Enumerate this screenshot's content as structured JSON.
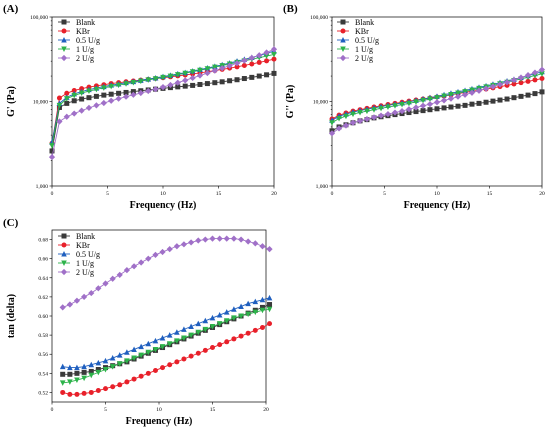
{
  "chart_data": [
    {
      "panel": "(A)",
      "type": "scatter",
      "xlabel": "Frequency (Hz)",
      "ylabel": "G' (Pa)",
      "scale_y": "log",
      "xlim": [
        0,
        20
      ],
      "ylim": [
        1000,
        100000
      ],
      "xticks": [
        0,
        5,
        10,
        15,
        20
      ],
      "yticks": [
        1000,
        10000,
        100000
      ],
      "ytick_labels": [
        "1,000",
        "10,000",
        "100,000"
      ],
      "legend_position": "top-left",
      "x": [
        0,
        0.67,
        1.33,
        2,
        2.67,
        3.33,
        4,
        4.67,
        5.33,
        6,
        6.67,
        7.33,
        8,
        8.67,
        9.33,
        10,
        10.67,
        11.33,
        12,
        12.67,
        13.33,
        14,
        14.67,
        15.33,
        16,
        16.67,
        17.33,
        18,
        18.67,
        19.33,
        20
      ],
      "series": [
        {
          "name": "Blank",
          "color": "#3a3a3a",
          "marker": "square",
          "values": [
            2600,
            8500,
            9500,
            10200,
            10700,
            11100,
            11500,
            11900,
            12200,
            12500,
            12800,
            13100,
            13400,
            13700,
            14000,
            14300,
            14600,
            14900,
            15200,
            15500,
            15900,
            16300,
            16700,
            17100,
            17600,
            18100,
            18700,
            19300,
            20000,
            20700,
            21500
          ]
        },
        {
          "name": "KBr",
          "color": "#e8202a",
          "marker": "circle",
          "values": [
            3200,
            11000,
            12500,
            13500,
            14200,
            14800,
            15300,
            15800,
            16300,
            16700,
            17100,
            17500,
            17900,
            18300,
            18700,
            19100,
            19600,
            20100,
            20600,
            21200,
            21800,
            22500,
            23200,
            24000,
            24800,
            25700,
            26700,
            27800,
            29000,
            30300,
            31700
          ]
        },
        {
          "name": "0.5 U/g",
          "color": "#1f5fbf",
          "marker": "triangle-up",
          "values": [
            3300,
            9500,
            11200,
            12300,
            13100,
            13800,
            14400,
            15000,
            15600,
            16100,
            16700,
            17200,
            17800,
            18400,
            19000,
            19700,
            20400,
            21200,
            22000,
            22900,
            23900,
            24900,
            26000,
            27200,
            28500,
            30000,
            31500,
            33200,
            35000,
            37000,
            39500
          ]
        },
        {
          "name": "1 U/g",
          "color": "#2db34a",
          "marker": "triangle-down",
          "values": [
            3000,
            9000,
            10800,
            11800,
            12600,
            13300,
            13900,
            14500,
            15100,
            15600,
            16200,
            16800,
            17400,
            18000,
            18600,
            19300,
            20000,
            20800,
            21600,
            22500,
            23400,
            24400,
            25500,
            26600,
            27800,
            29000,
            30300,
            31600,
            33000,
            34500,
            36000
          ]
        },
        {
          "name": "2 U/g",
          "color": "#a070c8",
          "marker": "diamond",
          "values": [
            2200,
            5800,
            6600,
            7200,
            7800,
            8400,
            9000,
            9600,
            10200,
            10800,
            11400,
            12000,
            12600,
            13300,
            14000,
            14800,
            15700,
            16700,
            17800,
            19000,
            20300,
            21700,
            23200,
            24800,
            26500,
            28400,
            30500,
            32800,
            35300,
            38000,
            41500
          ]
        }
      ]
    },
    {
      "panel": "(B)",
      "type": "scatter",
      "xlabel": "Frequency (Hz)",
      "ylabel": "G'' (Pa)",
      "scale_y": "log",
      "xlim": [
        0,
        20
      ],
      "ylim": [
        1000,
        100000
      ],
      "xticks": [
        0,
        5,
        10,
        15,
        20
      ],
      "yticks": [
        1000,
        10000,
        100000
      ],
      "ytick_labels": [
        "1,000",
        "10,000",
        "100,000"
      ],
      "legend_position": "top-left",
      "x": [
        0,
        0.67,
        1.33,
        2,
        2.67,
        3.33,
        4,
        4.67,
        5.33,
        6,
        6.67,
        7.33,
        8,
        8.67,
        9.33,
        10,
        10.67,
        11.33,
        12,
        12.67,
        13.33,
        14,
        14.67,
        15.33,
        16,
        16.67,
        17.33,
        18,
        18.67,
        19.33,
        20
      ],
      "series": [
        {
          "name": "Blank",
          "color": "#3a3a3a",
          "marker": "square",
          "values": [
            4500,
            5000,
            5300,
            5600,
            5900,
            6100,
            6400,
            6600,
            6800,
            7000,
            7200,
            7400,
            7600,
            7800,
            8000,
            8200,
            8400,
            8600,
            8800,
            9000,
            9300,
            9500,
            9800,
            10100,
            10400,
            10700,
            11100,
            11500,
            11900,
            12400,
            13000
          ]
        },
        {
          "name": "KBr",
          "color": "#e8202a",
          "marker": "circle",
          "values": [
            6200,
            6900,
            7300,
            7700,
            8000,
            8300,
            8600,
            8900,
            9200,
            9500,
            9800,
            10100,
            10400,
            10700,
            11000,
            11300,
            11600,
            12000,
            12400,
            12800,
            13200,
            13600,
            14000,
            14500,
            15000,
            15500,
            16100,
            16700,
            17300,
            18000,
            18700
          ]
        },
        {
          "name": "0.5 U/g",
          "color": "#1f5fbf",
          "marker": "triangle-up",
          "values": [
            6000,
            6700,
            7100,
            7500,
            7800,
            8100,
            8400,
            8700,
            9000,
            9300,
            9600,
            9900,
            10300,
            10700,
            11100,
            11500,
            12000,
            12500,
            13000,
            13500,
            14100,
            14700,
            15300,
            16000,
            16700,
            17500,
            18300,
            19200,
            20200,
            21300,
            22500
          ]
        },
        {
          "name": "1 U/g",
          "color": "#2db34a",
          "marker": "triangle-down",
          "values": [
            5600,
            6300,
            6700,
            7100,
            7400,
            7700,
            8000,
            8300,
            8600,
            8900,
            9200,
            9500,
            9900,
            10300,
            10700,
            11100,
            11600,
            12100,
            12600,
            13100,
            13700,
            14300,
            14900,
            15500,
            16200,
            16900,
            17700,
            18500,
            19400,
            20300,
            21300
          ]
        },
        {
          "name": "2 U/g",
          "color": "#a070c8",
          "marker": "diamond",
          "values": [
            4200,
            4800,
            5200,
            5600,
            5900,
            6200,
            6500,
            6800,
            7100,
            7400,
            7700,
            8100,
            8500,
            8900,
            9300,
            9800,
            10300,
            10800,
            11400,
            12000,
            12700,
            13400,
            14200,
            15000,
            15900,
            16900,
            18000,
            19200,
            20500,
            22000,
            23800
          ]
        }
      ]
    },
    {
      "panel": "(C)",
      "type": "scatter",
      "xlabel": "Frequency (Hz)",
      "ylabel": "tan (delta)",
      "xlim": [
        0,
        20
      ],
      "ylim": [
        0.51,
        0.69
      ],
      "xticks": [
        0,
        5,
        10,
        15,
        20
      ],
      "yticks": [
        0.52,
        0.54,
        0.56,
        0.58,
        0.6,
        0.62,
        0.64,
        0.66,
        0.68
      ],
      "ytick_labels": [
        "0.52",
        "0.54",
        "0.56",
        "0.58",
        "0.60",
        "0.62",
        "0.64",
        "0.66",
        "0.68"
      ],
      "legend_position": "top-left",
      "x": [
        1,
        1.67,
        2.33,
        3,
        3.67,
        4.33,
        5,
        5.67,
        6.33,
        7,
        7.67,
        8.33,
        9,
        9.67,
        10.33,
        11,
        11.67,
        12.33,
        13,
        13.67,
        14.33,
        15,
        15.67,
        16.33,
        17,
        17.67,
        18.33,
        19,
        19.67,
        20.33
      ],
      "series": [
        {
          "name": "Blank",
          "color": "#3a3a3a",
          "marker": "square",
          "values": [
            0.539,
            0.539,
            0.54,
            0.541,
            0.542,
            0.544,
            0.546,
            0.548,
            0.55,
            0.552,
            0.555,
            0.558,
            0.561,
            0.564,
            0.567,
            0.57,
            0.573,
            0.576,
            0.579,
            0.582,
            0.585,
            0.588,
            0.591,
            0.594,
            0.597,
            0.6,
            0.603,
            0.606,
            0.609,
            0.612
          ]
        },
        {
          "name": "KBr",
          "color": "#e8202a",
          "marker": "circle",
          "values": [
            0.52,
            0.518,
            0.518,
            0.519,
            0.52,
            0.522,
            0.524,
            0.526,
            0.528,
            0.531,
            0.534,
            0.537,
            0.54,
            0.543,
            0.546,
            0.549,
            0.552,
            0.555,
            0.558,
            0.561,
            0.564,
            0.567,
            0.57,
            0.573,
            0.576,
            0.579,
            0.582,
            0.585,
            0.588,
            0.592
          ]
        },
        {
          "name": "0.5 U/g",
          "color": "#1f5fbf",
          "marker": "triangle-up",
          "values": [
            0.547,
            0.546,
            0.546,
            0.547,
            0.549,
            0.551,
            0.553,
            0.556,
            0.559,
            0.562,
            0.565,
            0.568,
            0.571,
            0.574,
            0.577,
            0.58,
            0.583,
            0.586,
            0.589,
            0.592,
            0.595,
            0.598,
            0.601,
            0.604,
            0.607,
            0.61,
            0.613,
            0.615,
            0.617,
            0.619
          ]
        },
        {
          "name": "1 U/g",
          "color": "#2db34a",
          "marker": "triangle-down",
          "values": [
            0.53,
            0.531,
            0.533,
            0.535,
            0.538,
            0.541,
            0.544,
            0.547,
            0.55,
            0.553,
            0.556,
            0.559,
            0.562,
            0.565,
            0.568,
            0.571,
            0.574,
            0.577,
            0.58,
            0.583,
            0.586,
            0.589,
            0.592,
            0.595,
            0.598,
            0.6,
            0.602,
            0.604,
            0.606,
            0.607
          ]
        },
        {
          "name": "2 U/g",
          "color": "#a070c8",
          "marker": "diamond",
          "values": [
            0.609,
            0.612,
            0.616,
            0.62,
            0.624,
            0.629,
            0.634,
            0.639,
            0.643,
            0.648,
            0.652,
            0.656,
            0.66,
            0.664,
            0.667,
            0.67,
            0.673,
            0.675,
            0.677,
            0.679,
            0.68,
            0.681,
            0.681,
            0.681,
            0.681,
            0.68,
            0.678,
            0.676,
            0.673,
            0.67
          ]
        }
      ]
    }
  ]
}
